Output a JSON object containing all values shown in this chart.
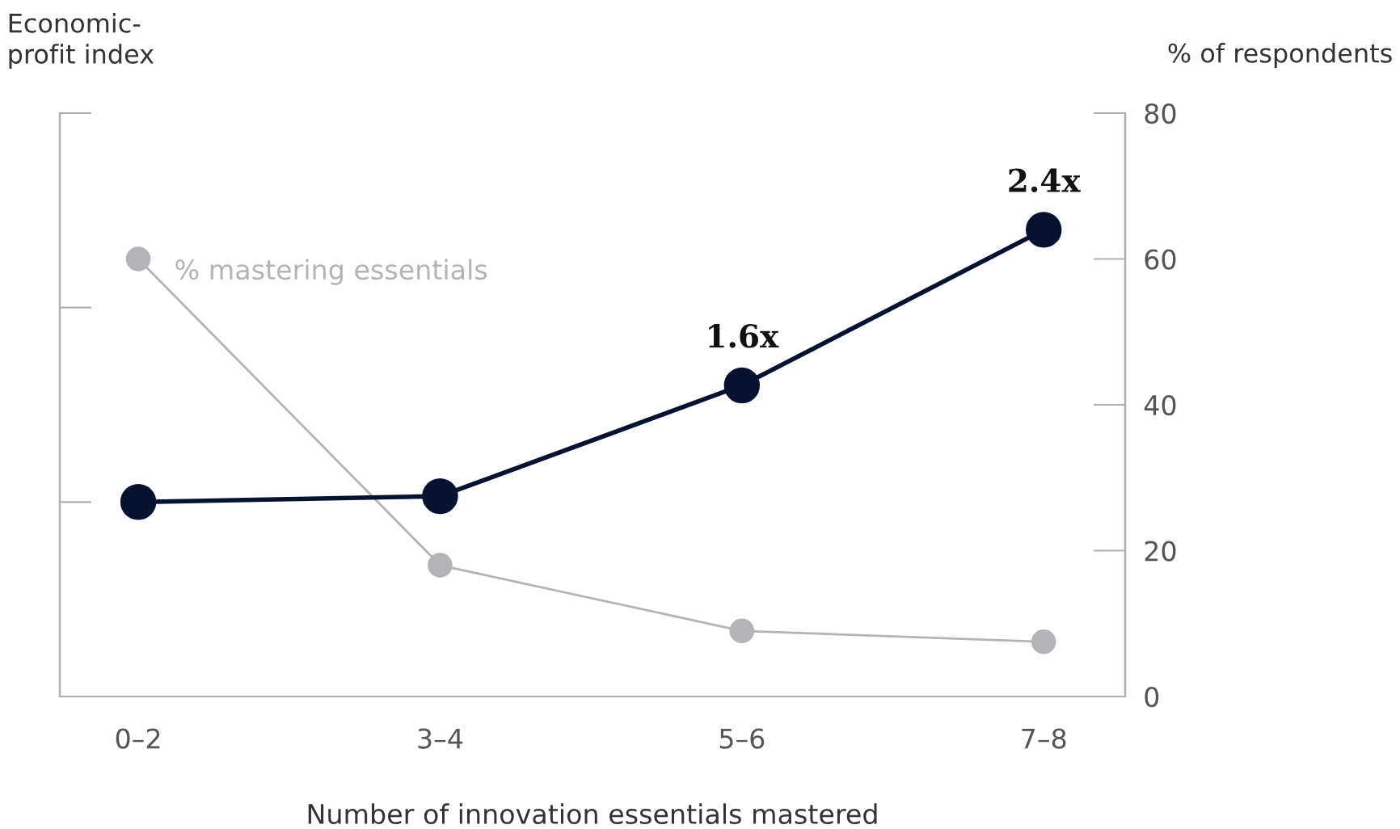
{
  "chart_data": {
    "type": "line",
    "ylabel": "Economic-\nprofit index",
    "y2label": "% of respondents",
    "xlabel": "Number of innovation essentials mastered",
    "categories": [
      "0–2",
      "3–4",
      "5–6",
      "7–8"
    ],
    "series": [
      {
        "name": "% mastering essentials",
        "color": "#b4b4b8",
        "axis": "y2",
        "values": [
          60,
          18,
          9,
          7.5
        ]
      },
      {
        "color": "#061230",
        "values": [
          1.0,
          1.03,
          1.6,
          2.4
        ],
        "value_labels": [
          null,
          null,
          "1.6x",
          "2.4x"
        ]
      }
    ],
    "ylim": [
      0,
      3
    ],
    "y2lim": [
      0,
      80
    ],
    "y2ticks": [
      0,
      20,
      40,
      60,
      80
    ],
    "marker": "circle",
    "line_style": "solid",
    "grid": false,
    "legend": false
  }
}
